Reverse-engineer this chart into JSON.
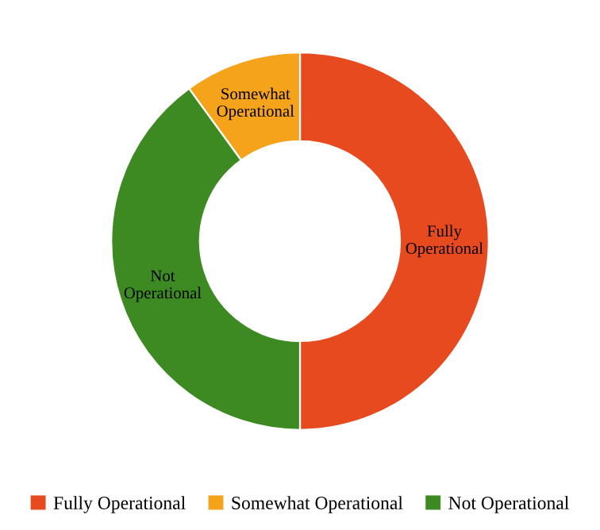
{
  "chart_data": {
    "type": "donut",
    "categories": [
      "Fully Operational",
      "Somewhat Operational",
      "Not Operational"
    ],
    "values": [
      50,
      10,
      40
    ],
    "colors": [
      "#e84a1f",
      "#f5a31a",
      "#3d8a22"
    ],
    "legend": "bottom"
  }
}
